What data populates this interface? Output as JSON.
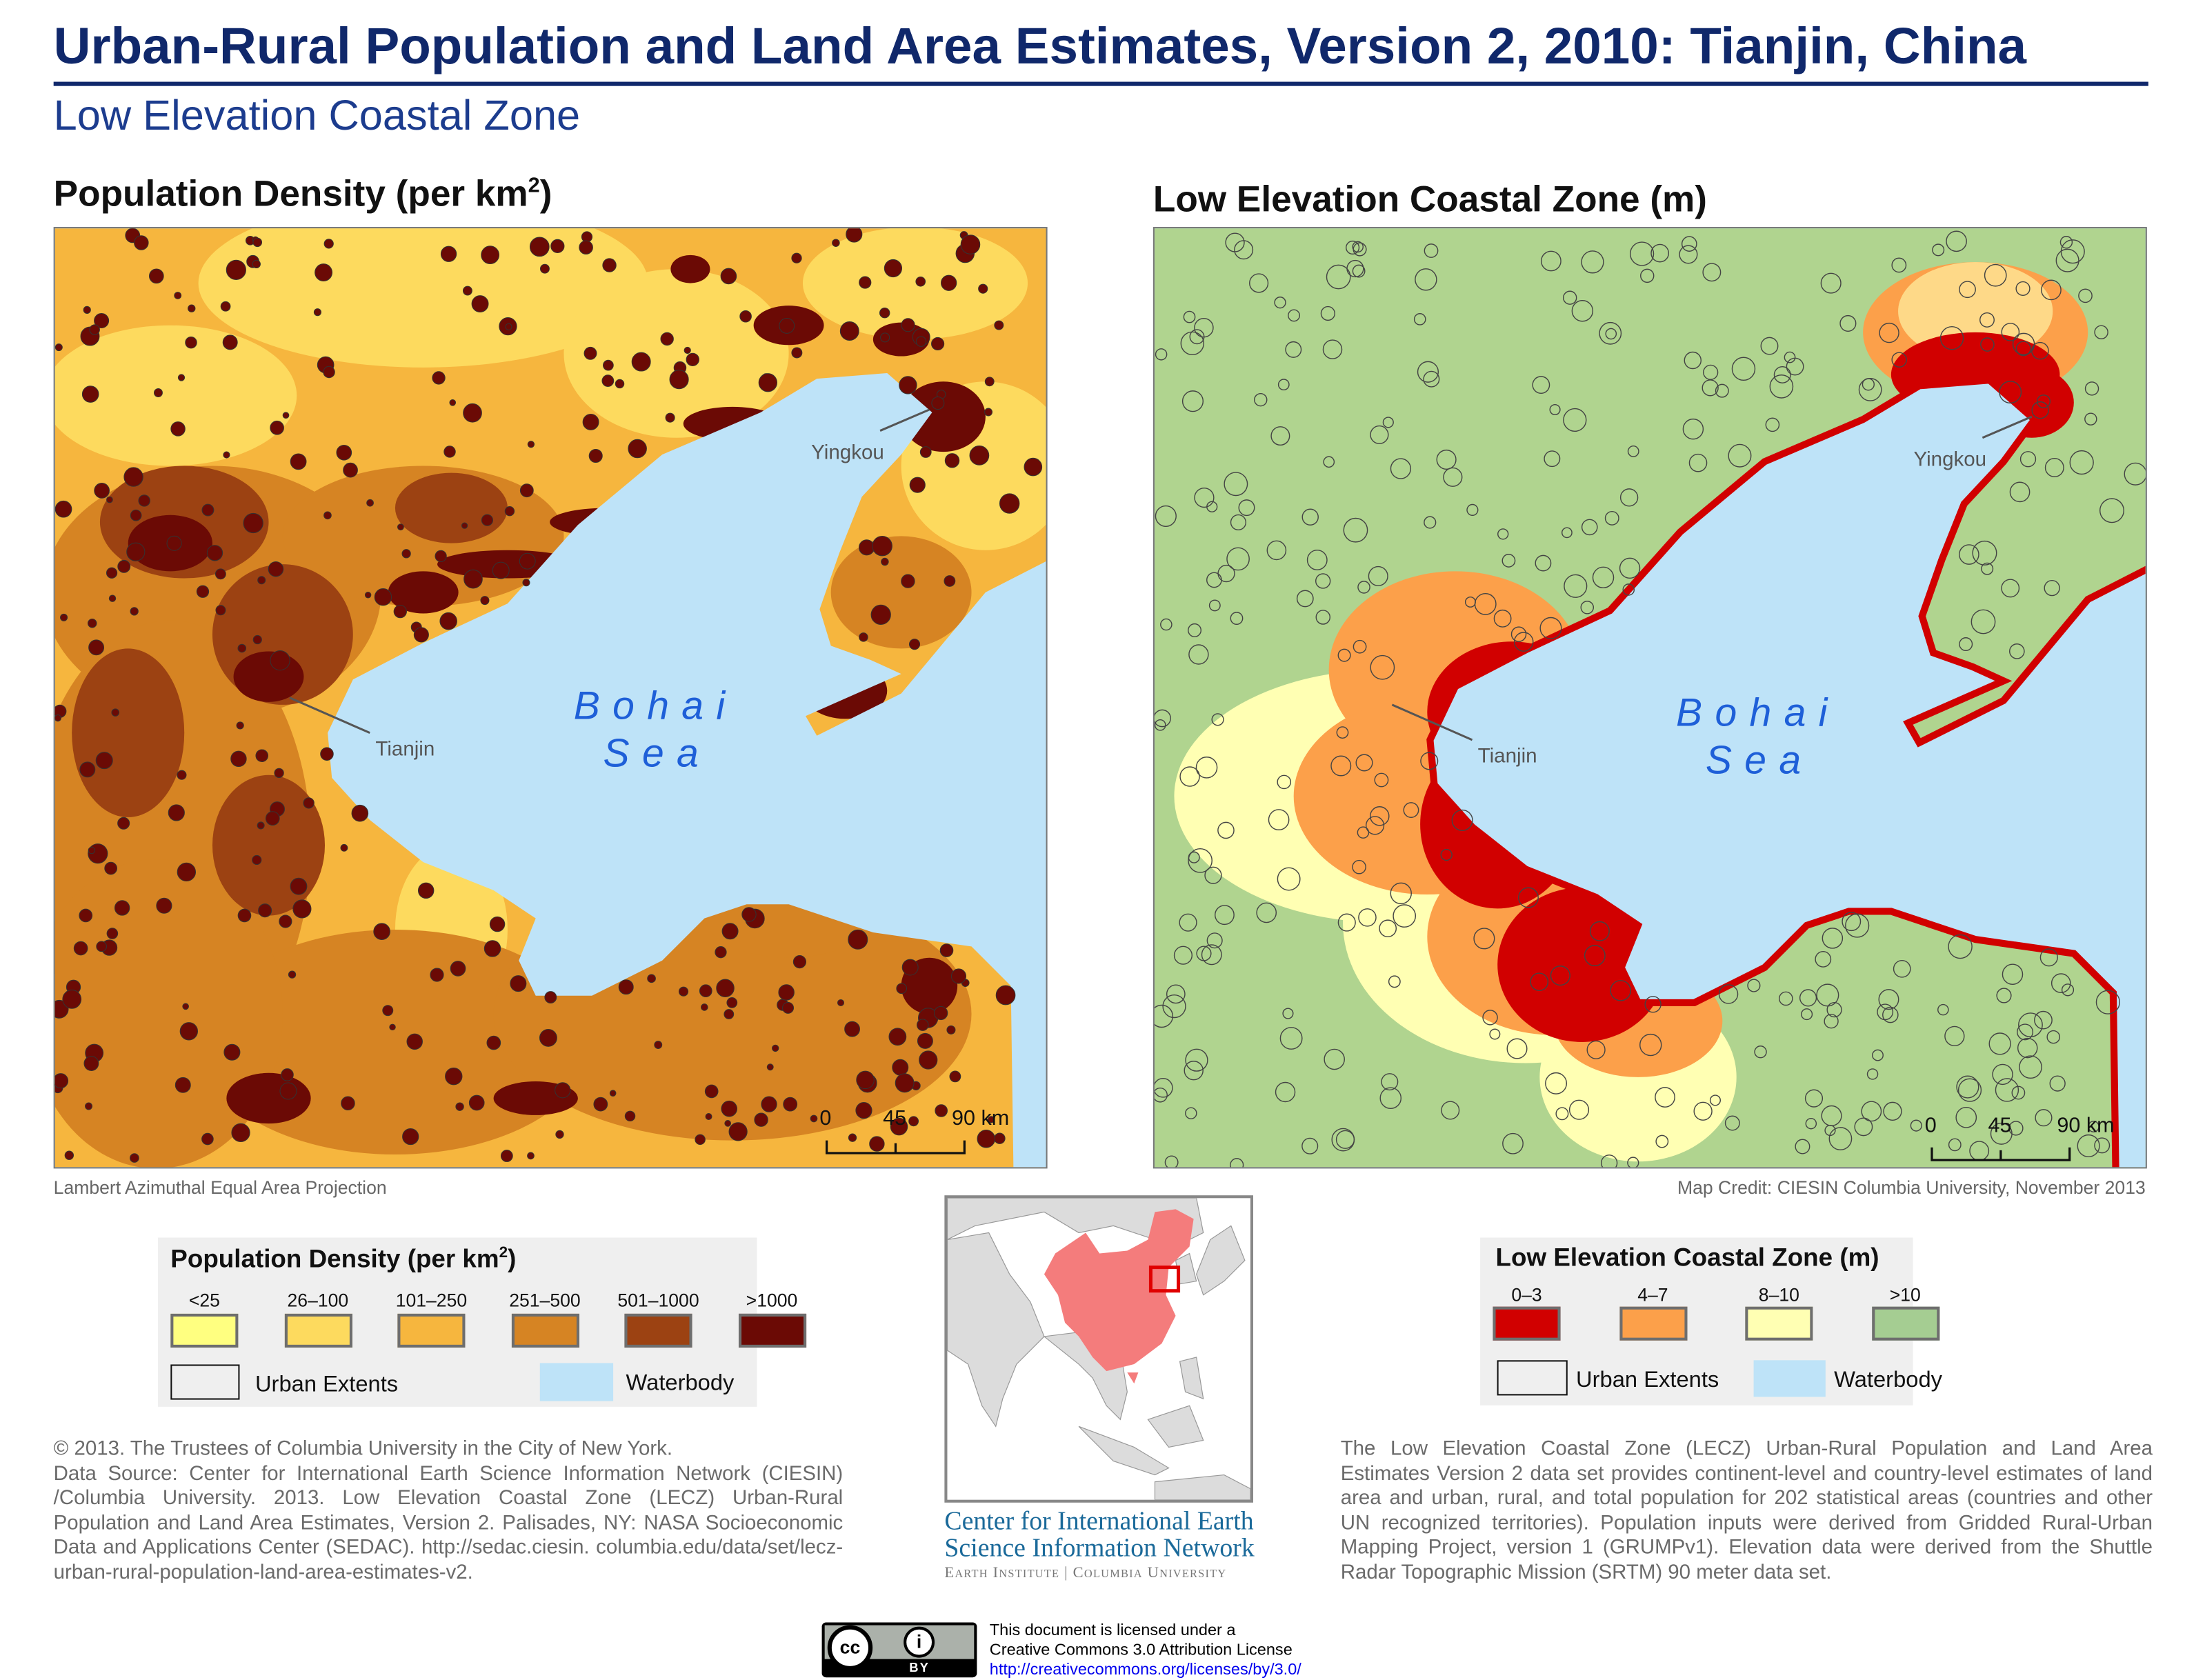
{
  "header": {
    "title": "Urban-Rural Population and Land Area Estimates, Version 2, 2010: Tianjin, China",
    "subtitle": "Low Elevation Coastal Zone"
  },
  "maps": {
    "left": {
      "heading": "Population Density (per km",
      "heading_sup": "2",
      "heading_end": ")",
      "labels": {
        "city1": "Yingkou",
        "city2": "Tianjin",
        "sea1": "Bohai",
        "sea2": "Sea"
      },
      "scale": {
        "s0": "0",
        "s1": "45",
        "s2": "90 km"
      }
    },
    "right": {
      "heading": "Low Elevation Coastal Zone (m)",
      "labels": {
        "city1": "Yingkou",
        "city2": "Tianjin",
        "sea1": "Bohai",
        "sea2": "Sea"
      },
      "scale": {
        "s0": "0",
        "s1": "45",
        "s2": "90 km"
      }
    },
    "projection": "Lambert Azimuthal Equal Area Projection",
    "credit": "Map Credit: CIESIN Columbia University, November 2013"
  },
  "legend_density": {
    "title": "Population Density (per km",
    "title_sup": "2",
    "title_end": ")",
    "classes": [
      {
        "label": "<25",
        "color": "#FFFF80"
      },
      {
        "label": "26–100",
        "color": "#FDDA5E"
      },
      {
        "label": "101–250",
        "color": "#F6B63E"
      },
      {
        "label": "251–500",
        "color": "#D68423"
      },
      {
        "label": "501–1000",
        "color": "#9C4212"
      },
      {
        "label": ">1000",
        "color": "#6B0A05"
      }
    ],
    "urban": "Urban Extents",
    "water": "Waterbody"
  },
  "legend_lecz": {
    "title": "Low Elevation Coastal Zone (m)",
    "classes": [
      {
        "label": "0–3",
        "color": "#D10000"
      },
      {
        "label": "4–7",
        "color": "#FCA04A"
      },
      {
        "label": "8–10",
        "color": "#FFFFB3"
      },
      {
        "label": ">10",
        "color": "#A5CD92"
      }
    ],
    "urban": "Urban Extents",
    "water": "Waterbody"
  },
  "colors": {
    "water": "#BEE3F8",
    "title": "#10286B",
    "china": "#F47C7C"
  },
  "citation": {
    "lines": [
      "© 2013. The Trustees of Columbia University in the City of New York.",
      "Data Source: Center for International Earth Science Information Network (CIESIN) /Columbia University. 2013. Low Elevation Coastal Zone (LECZ) Urban-Rural Population and Land Area Estimates, Version 2. Palisades, NY: NASA Socioeconomic Data and Applications Center (SEDAC). http://sedac.ciesin. columbia.edu/data/set/lecz-urban-rural-population-land-area-estimates-v2."
    ]
  },
  "description": "The Low Elevation Coastal Zone (LECZ) Urban-Rural Population and Land Area Estimates Version 2 data set provides continent-level and country-level estimates of land area and urban, rural, and total population for 202 statistical areas (countries and other UN recognized territories).  Population inputs were derived from Gridded Rural-Urban Mapping Project, version 1 (GRUMPv1).  Elevation data were derived from the Shuttle Radar Topographic Mission (SRTM) 90 meter data set.",
  "logo": {
    "line1": "Center for International Earth",
    "line2": "Science Information Network",
    "line3": "Earth Institute | Columbia University"
  },
  "license": {
    "badge_text": "BY",
    "line1": "This document is licensed under a",
    "line2": "Creative Commons 3.0 Attribution License",
    "url": "http://creativecommons.org/licenses/by/3.0/"
  }
}
